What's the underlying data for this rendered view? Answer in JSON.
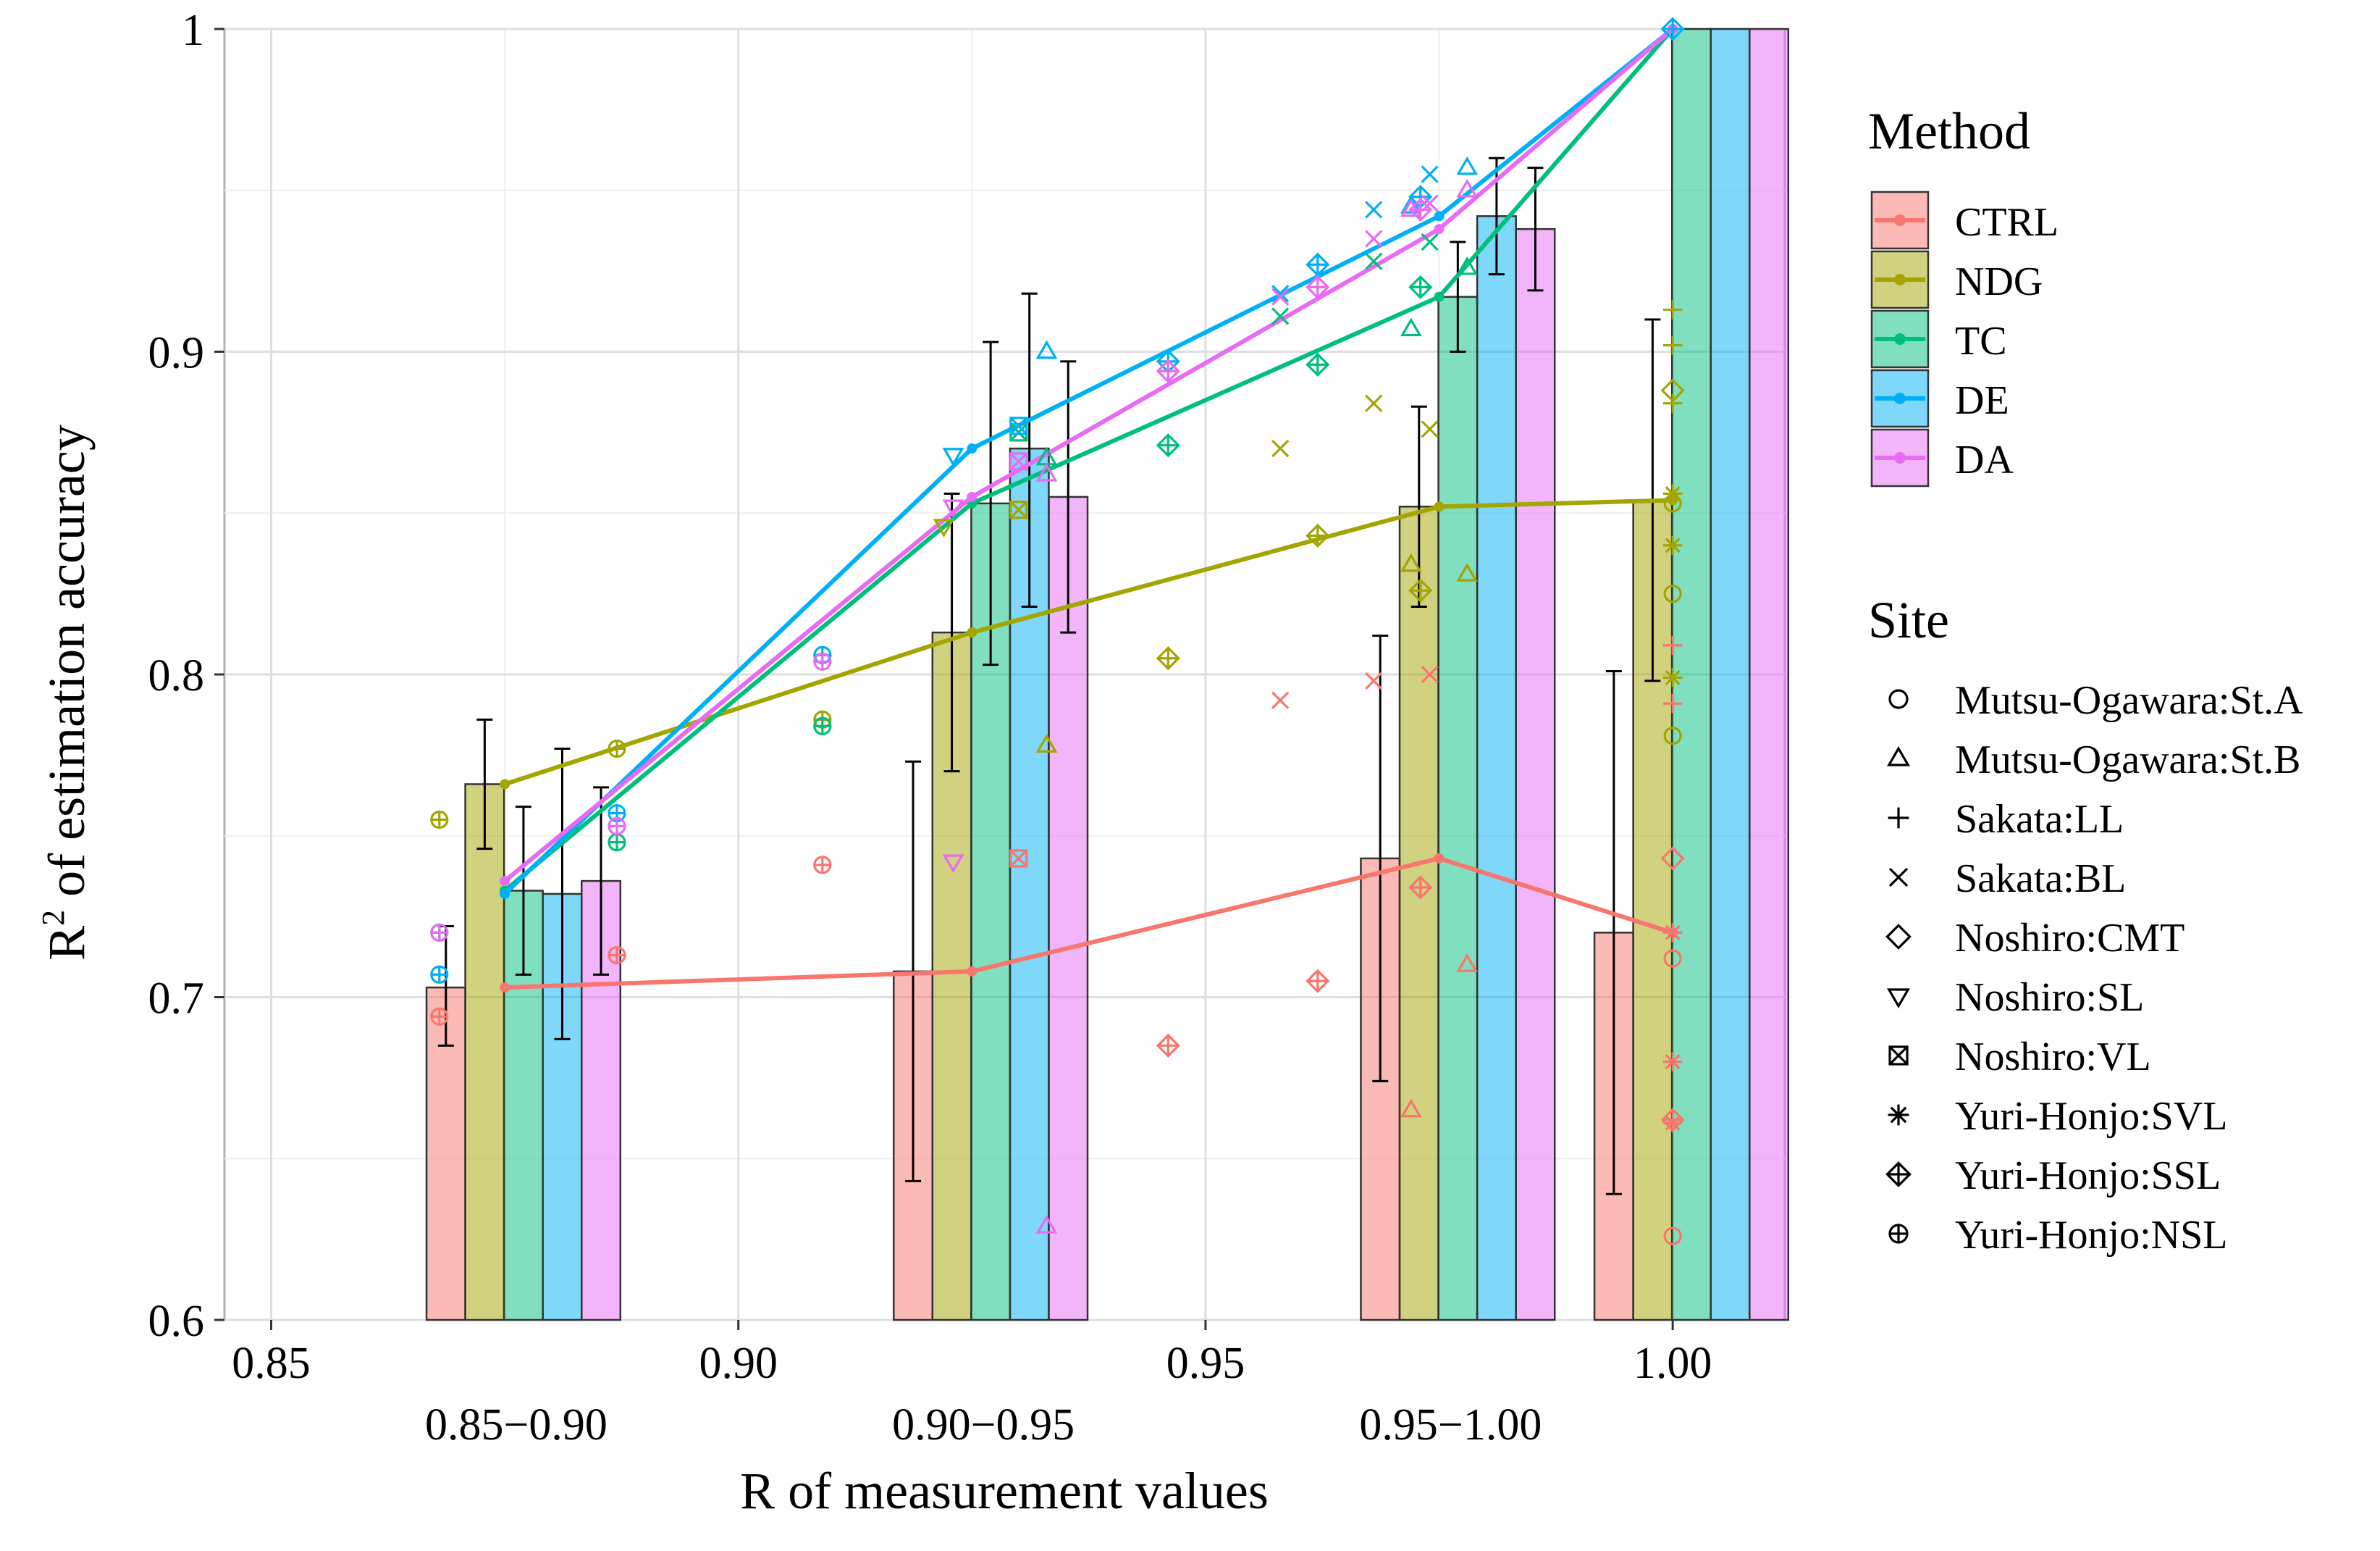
{
  "chart_data": {
    "type": "bar",
    "xlabel": "R of measurement values",
    "ylabel": "R² of estimation accuracy",
    "ylabel_base": "R",
    "ylabel_sup": "2",
    "ylabel_rest": " of estimation accuracy",
    "xlim": [
      0.845,
      1.012
    ],
    "ylim": [
      0.6,
      1.0
    ],
    "x_ticks": [
      "0.85",
      "0.90",
      "0.95",
      "1.00"
    ],
    "x_tick_values": [
      0.85,
      0.9,
      0.95,
      1.0
    ],
    "y_ticks": [
      "0.6",
      "0.7",
      "0.8",
      "0.9",
      "1"
    ],
    "y_tick_values": [
      0.6,
      0.7,
      0.8,
      0.9,
      1.0
    ],
    "groups": [
      {
        "label": "0.85−0.90",
        "center": 0.877
      },
      {
        "label": "0.90−0.95",
        "center": 0.927
      },
      {
        "label": "0.95−1.00",
        "center": 0.977
      },
      {
        "label": "",
        "center": 1.002
      }
    ],
    "methods": [
      {
        "name": "CTRL",
        "color": "#F8766D",
        "bars": [
          0.703,
          0.708,
          0.743,
          0.72
        ],
        "err_lo": [
          0.685,
          0.643,
          0.674,
          0.639
        ],
        "err_hi": [
          0.722,
          0.773,
          0.812,
          0.801
        ],
        "line_x": [
          0.875,
          0.925,
          0.975,
          1.0
        ],
        "line_y": [
          0.703,
          0.708,
          0.743,
          0.72
        ]
      },
      {
        "name": "NDG",
        "color": "#A3A500",
        "bars": [
          0.766,
          0.813,
          0.852,
          0.854
        ],
        "err_lo": [
          0.746,
          0.77,
          0.821,
          0.798
        ],
        "err_hi": [
          0.786,
          0.856,
          0.883,
          0.91
        ],
        "line_x": [
          0.875,
          0.925,
          0.975,
          1.0
        ],
        "line_y": [
          0.766,
          0.813,
          0.852,
          0.854
        ]
      },
      {
        "name": "TC",
        "color": "#00BF7D",
        "bars": [
          0.733,
          0.853,
          0.917,
          1.0
        ],
        "err_lo": [
          0.707,
          0.803,
          0.9,
          1.0
        ],
        "err_hi": [
          0.759,
          0.903,
          0.934,
          1.0
        ],
        "line_x": [
          0.875,
          0.925,
          0.975,
          1.0
        ],
        "line_y": [
          0.733,
          0.853,
          0.917,
          1.0
        ]
      },
      {
        "name": "DE",
        "color": "#00B0F6",
        "bars": [
          0.732,
          0.87,
          0.942,
          1.0
        ],
        "err_lo": [
          0.687,
          0.821,
          0.924,
          1.0
        ],
        "err_hi": [
          0.777,
          0.918,
          0.96,
          1.0
        ],
        "line_x": [
          0.875,
          0.925,
          0.975,
          1.0
        ],
        "line_y": [
          0.732,
          0.87,
          0.942,
          1.0
        ]
      },
      {
        "name": "DA",
        "color": "#E76BF3",
        "bars": [
          0.736,
          0.855,
          0.938,
          1.0
        ],
        "err_lo": [
          0.707,
          0.813,
          0.919,
          1.0
        ],
        "err_hi": [
          0.765,
          0.897,
          0.957,
          1.0
        ],
        "line_x": [
          0.875,
          0.925,
          0.975,
          1.0
        ],
        "line_y": [
          0.736,
          0.855,
          0.938,
          1.0
        ]
      }
    ],
    "sites": [
      {
        "name": "Mutsu-Ogawara:St.A",
        "shape": "circle"
      },
      {
        "name": "Mutsu-Ogawara:St.B",
        "shape": "triangle"
      },
      {
        "name": "Sakata:LL",
        "shape": "plus"
      },
      {
        "name": "Sakata:BL",
        "shape": "cross"
      },
      {
        "name": "Noshiro:CMT",
        "shape": "diamond"
      },
      {
        "name": "Noshiro:SL",
        "shape": "triangle-down"
      },
      {
        "name": "Noshiro:VL",
        "shape": "square-x"
      },
      {
        "name": "Yuri-Honjo:SVL",
        "shape": "asterisk"
      },
      {
        "name": "Yuri-Honjo:SSL",
        "shape": "diamond-plus"
      },
      {
        "name": "Yuri-Honjo:NSL",
        "shape": "circle-plus"
      }
    ],
    "points": [
      {
        "x": 0.868,
        "y": 0.694,
        "m": "CTRL",
        "s": "circle-plus"
      },
      {
        "x": 0.868,
        "y": 0.755,
        "m": "NDG",
        "s": "circle-plus"
      },
      {
        "x": 0.868,
        "y": 0.72,
        "m": "TC",
        "s": "circle-plus"
      },
      {
        "x": 0.868,
        "y": 0.707,
        "m": "DE",
        "s": "circle-plus"
      },
      {
        "x": 0.868,
        "y": 0.72,
        "m": "DA",
        "s": "circle-plus"
      },
      {
        "x": 0.887,
        "y": 0.713,
        "m": "CTRL",
        "s": "circle-plus"
      },
      {
        "x": 0.887,
        "y": 0.777,
        "m": "NDG",
        "s": "circle-plus"
      },
      {
        "x": 0.887,
        "y": 0.748,
        "m": "TC",
        "s": "circle-plus"
      },
      {
        "x": 0.887,
        "y": 0.757,
        "m": "DE",
        "s": "circle-plus"
      },
      {
        "x": 0.887,
        "y": 0.753,
        "m": "DA",
        "s": "circle-plus"
      },
      {
        "x": 0.909,
        "y": 0.741,
        "m": "CTRL",
        "s": "circle-plus"
      },
      {
        "x": 0.909,
        "y": 0.786,
        "m": "NDG",
        "s": "circle-plus"
      },
      {
        "x": 0.909,
        "y": 0.784,
        "m": "TC",
        "s": "circle-plus"
      },
      {
        "x": 0.909,
        "y": 0.806,
        "m": "DE",
        "s": "circle-plus"
      },
      {
        "x": 0.909,
        "y": 0.804,
        "m": "DA",
        "s": "circle-plus"
      },
      {
        "x": 0.923,
        "y": 0.742,
        "m": "DA",
        "s": "triangle-down"
      },
      {
        "x": 0.922,
        "y": 0.846,
        "m": "NDG",
        "s": "triangle-down"
      },
      {
        "x": 0.923,
        "y": 0.868,
        "m": "TC",
        "s": "triangle-down"
      },
      {
        "x": 0.923,
        "y": 0.868,
        "m": "DE",
        "s": "triangle-down"
      },
      {
        "x": 0.923,
        "y": 0.852,
        "m": "DA",
        "s": "triangle-down"
      },
      {
        "x": 0.93,
        "y": 0.743,
        "m": "CTRL",
        "s": "square-x"
      },
      {
        "x": 0.93,
        "y": 0.851,
        "m": "NDG",
        "s": "square-x"
      },
      {
        "x": 0.93,
        "y": 0.875,
        "m": "TC",
        "s": "square-x"
      },
      {
        "x": 0.93,
        "y": 0.877,
        "m": "DE",
        "s": "square-x"
      },
      {
        "x": 0.93,
        "y": 0.866,
        "m": "DA",
        "s": "square-x"
      },
      {
        "x": 0.933,
        "y": 0.629,
        "m": "DA",
        "s": "triangle"
      },
      {
        "x": 0.933,
        "y": 0.778,
        "m": "NDG",
        "s": "triangle"
      },
      {
        "x": 0.933,
        "y": 0.867,
        "m": "TC",
        "s": "triangle"
      },
      {
        "x": 0.933,
        "y": 0.9,
        "m": "DE",
        "s": "triangle"
      },
      {
        "x": 0.933,
        "y": 0.862,
        "m": "DA",
        "s": "triangle"
      },
      {
        "x": 0.946,
        "y": 0.685,
        "m": "CTRL",
        "s": "diamond-plus"
      },
      {
        "x": 0.946,
        "y": 0.805,
        "m": "NDG",
        "s": "diamond-plus"
      },
      {
        "x": 0.946,
        "y": 0.871,
        "m": "TC",
        "s": "diamond-plus"
      },
      {
        "x": 0.946,
        "y": 0.897,
        "m": "DE",
        "s": "diamond-plus"
      },
      {
        "x": 0.946,
        "y": 0.894,
        "m": "DA",
        "s": "diamond-plus"
      },
      {
        "x": 0.958,
        "y": 0.792,
        "m": "CTRL",
        "s": "cross"
      },
      {
        "x": 0.958,
        "y": 0.87,
        "m": "NDG",
        "s": "cross"
      },
      {
        "x": 0.958,
        "y": 0.911,
        "m": "TC",
        "s": "cross"
      },
      {
        "x": 0.958,
        "y": 0.918,
        "m": "DE",
        "s": "cross"
      },
      {
        "x": 0.958,
        "y": 0.917,
        "m": "DA",
        "s": "cross"
      },
      {
        "x": 0.962,
        "y": 0.705,
        "m": "CTRL",
        "s": "diamond-plus"
      },
      {
        "x": 0.962,
        "y": 0.843,
        "m": "NDG",
        "s": "diamond-plus"
      },
      {
        "x": 0.962,
        "y": 0.896,
        "m": "TC",
        "s": "diamond-plus"
      },
      {
        "x": 0.962,
        "y": 0.927,
        "m": "DE",
        "s": "diamond-plus"
      },
      {
        "x": 0.962,
        "y": 0.92,
        "m": "DA",
        "s": "diamond-plus"
      },
      {
        "x": 0.968,
        "y": 0.798,
        "m": "CTRL",
        "s": "cross"
      },
      {
        "x": 0.968,
        "y": 0.884,
        "m": "NDG",
        "s": "cross"
      },
      {
        "x": 0.968,
        "y": 0.928,
        "m": "TC",
        "s": "cross"
      },
      {
        "x": 0.968,
        "y": 0.944,
        "m": "DE",
        "s": "cross"
      },
      {
        "x": 0.968,
        "y": 0.935,
        "m": "DA",
        "s": "cross"
      },
      {
        "x": 0.972,
        "y": 0.665,
        "m": "CTRL",
        "s": "triangle"
      },
      {
        "x": 0.972,
        "y": 0.834,
        "m": "NDG",
        "s": "triangle"
      },
      {
        "x": 0.972,
        "y": 0.907,
        "m": "TC",
        "s": "triangle"
      },
      {
        "x": 0.972,
        "y": 0.945,
        "m": "DE",
        "s": "triangle"
      },
      {
        "x": 0.972,
        "y": 0.944,
        "m": "DA",
        "s": "triangle"
      },
      {
        "x": 0.973,
        "y": 0.734,
        "m": "CTRL",
        "s": "diamond-plus"
      },
      {
        "x": 0.973,
        "y": 0.826,
        "m": "NDG",
        "s": "diamond-plus"
      },
      {
        "x": 0.973,
        "y": 0.92,
        "m": "TC",
        "s": "diamond-plus"
      },
      {
        "x": 0.973,
        "y": 0.948,
        "m": "DE",
        "s": "diamond-plus"
      },
      {
        "x": 0.973,
        "y": 0.944,
        "m": "DA",
        "s": "diamond-plus"
      },
      {
        "x": 0.974,
        "y": 0.8,
        "m": "CTRL",
        "s": "cross"
      },
      {
        "x": 0.974,
        "y": 0.876,
        "m": "NDG",
        "s": "cross"
      },
      {
        "x": 0.974,
        "y": 0.934,
        "m": "TC",
        "s": "cross"
      },
      {
        "x": 0.974,
        "y": 0.955,
        "m": "DE",
        "s": "cross"
      },
      {
        "x": 0.974,
        "y": 0.946,
        "m": "DA",
        "s": "cross"
      },
      {
        "x": 0.978,
        "y": 0.71,
        "m": "CTRL",
        "s": "triangle"
      },
      {
        "x": 0.978,
        "y": 0.831,
        "m": "NDG",
        "s": "triangle"
      },
      {
        "x": 0.978,
        "y": 0.926,
        "m": "TC",
        "s": "triangle"
      },
      {
        "x": 0.978,
        "y": 0.957,
        "m": "DE",
        "s": "triangle"
      },
      {
        "x": 0.978,
        "y": 0.95,
        "m": "DA",
        "s": "triangle"
      },
      {
        "x": 1.0,
        "y": 0.626,
        "m": "CTRL",
        "s": "circle"
      },
      {
        "x": 1.0,
        "y": 0.712,
        "m": "CTRL",
        "s": "circle"
      },
      {
        "x": 1.0,
        "y": 0.662,
        "m": "CTRL",
        "s": "diamond-plus"
      },
      {
        "x": 1.0,
        "y": 0.661,
        "m": "CTRL",
        "s": "asterisk"
      },
      {
        "x": 1.0,
        "y": 0.68,
        "m": "CTRL",
        "s": "asterisk"
      },
      {
        "x": 1.0,
        "y": 0.72,
        "m": "CTRL",
        "s": "asterisk"
      },
      {
        "x": 1.0,
        "y": 0.743,
        "m": "CTRL",
        "s": "diamond"
      },
      {
        "x": 1.0,
        "y": 0.791,
        "m": "CTRL",
        "s": "plus"
      },
      {
        "x": 1.0,
        "y": 0.809,
        "m": "CTRL",
        "s": "plus"
      },
      {
        "x": 1.0,
        "y": 0.781,
        "m": "NDG",
        "s": "circle"
      },
      {
        "x": 1.0,
        "y": 0.825,
        "m": "NDG",
        "s": "circle"
      },
      {
        "x": 1.0,
        "y": 0.799,
        "m": "NDG",
        "s": "asterisk"
      },
      {
        "x": 1.0,
        "y": 0.84,
        "m": "NDG",
        "s": "asterisk"
      },
      {
        "x": 1.0,
        "y": 0.856,
        "m": "NDG",
        "s": "asterisk"
      },
      {
        "x": 1.0,
        "y": 0.853,
        "m": "NDG",
        "s": "circle"
      },
      {
        "x": 1.0,
        "y": 0.888,
        "m": "NDG",
        "s": "diamond"
      },
      {
        "x": 1.0,
        "y": 0.884,
        "m": "NDG",
        "s": "plus"
      },
      {
        "x": 1.0,
        "y": 0.902,
        "m": "NDG",
        "s": "plus"
      },
      {
        "x": 1.0,
        "y": 0.913,
        "m": "NDG",
        "s": "plus"
      },
      {
        "x": 1.0,
        "y": 1.0,
        "m": "DE",
        "s": "diamond-plus"
      }
    ]
  }
}
